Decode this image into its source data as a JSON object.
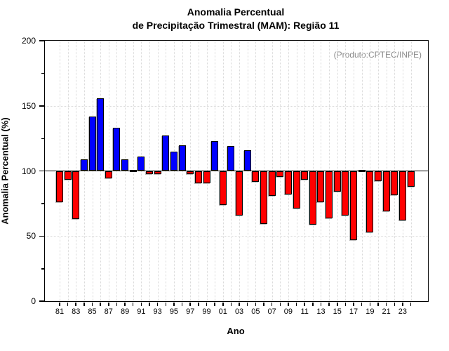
{
  "title": {
    "line1": "Anomalia Percentual",
    "line2": "de Precipitação Trimestral (MAM): Região 11"
  },
  "annotation": "(Produto:CPTEC/INPE)",
  "chart_data": {
    "type": "bar",
    "title": "Anomalia Percentual de Precipitação Trimestral (MAM): Região 11",
    "xlabel": "Ano",
    "ylabel": "Anomalia Percentual (%)",
    "legend": "none",
    "grid": "dotted, vertical line per year, horizontal at 50 and 150",
    "baseline": 100,
    "ylim": [
      0,
      200
    ],
    "xlim": [
      1979.2,
      2026.1
    ],
    "yticks": [
      0,
      50,
      100,
      150,
      200
    ],
    "ytick_minor": [
      25,
      75,
      125,
      175
    ],
    "grid_h_values": [
      50,
      150
    ],
    "xtick_label_years": [
      1981,
      1983,
      1985,
      1987,
      1989,
      1991,
      1993,
      1995,
      1997,
      1999,
      2001,
      2003,
      2005,
      2007,
      2009,
      2011,
      2013,
      2015,
      2017,
      2019,
      2021,
      2023
    ],
    "xtick_labels": [
      "81",
      "83",
      "85",
      "87",
      "89",
      "91",
      "93",
      "95",
      "97",
      "99",
      "01",
      "03",
      "05",
      "07",
      "09",
      "11",
      "13",
      "15",
      "17",
      "19",
      "21",
      "23"
    ],
    "years": [
      1981,
      1982,
      1983,
      1984,
      1985,
      1986,
      1987,
      1988,
      1989,
      1990,
      1991,
      1992,
      1993,
      1994,
      1995,
      1996,
      1997,
      1998,
      1999,
      2000,
      2001,
      2002,
      2003,
      2004,
      2005,
      2006,
      2007,
      2008,
      2009,
      2010,
      2011,
      2012,
      2013,
      2014,
      2015,
      2016,
      2017,
      2018,
      2019,
      2020,
      2021,
      2022,
      2023,
      2024
    ],
    "values": [
      76,
      93,
      63,
      109,
      142,
      156,
      94.5,
      133,
      109,
      100,
      111,
      97.5,
      97.5,
      127,
      115,
      119.5,
      97.5,
      90.5,
      90.5,
      123,
      74,
      119,
      66,
      116,
      91.5,
      59.5,
      81,
      95.5,
      82,
      71,
      93,
      59,
      76,
      63.5,
      84,
      65.5,
      47,
      100,
      53,
      92,
      69,
      81.5,
      62,
      88
    ],
    "colors": {
      "above_baseline": "#0000ff",
      "below_baseline": "#ff0000",
      "baseline_line": "#000000",
      "grid": "#d9d9d9",
      "annotation_text": "#8a8a8a",
      "frame": "#000000"
    }
  }
}
